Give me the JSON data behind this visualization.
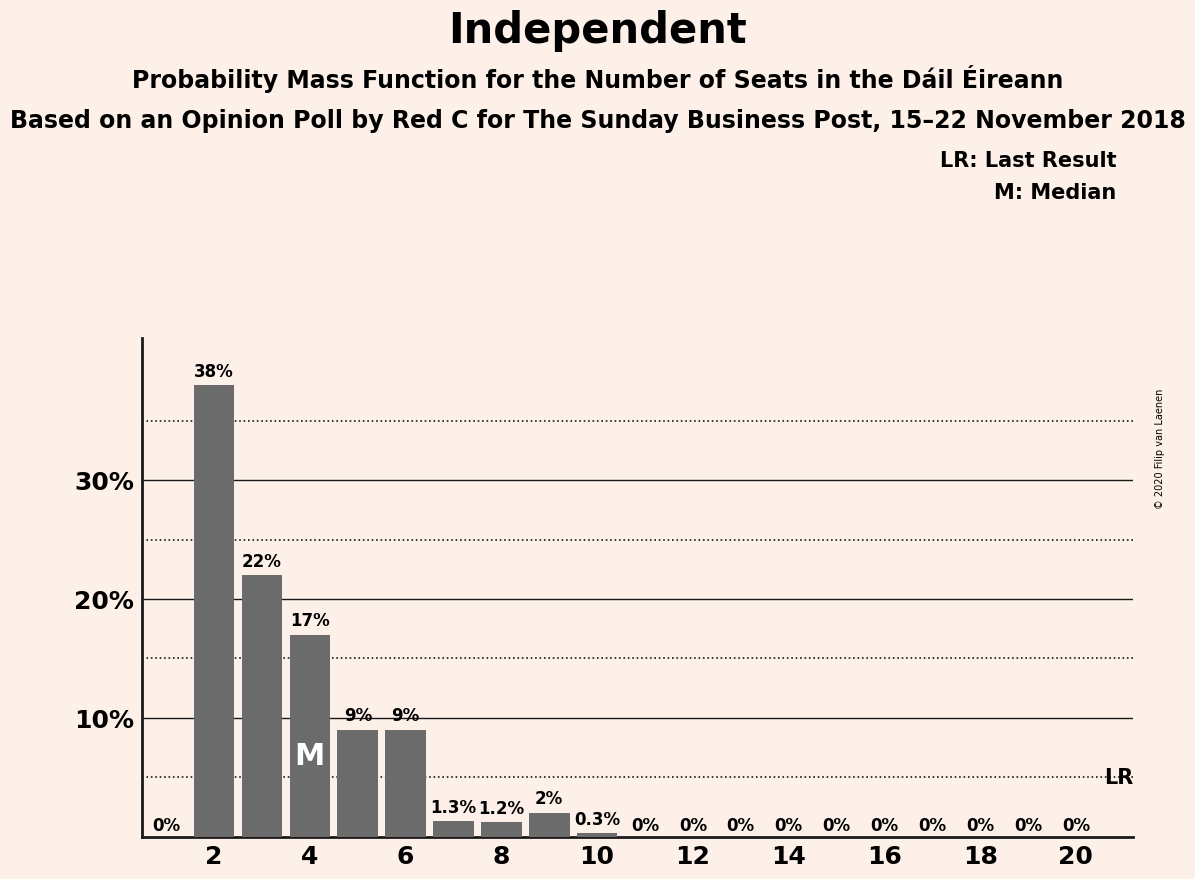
{
  "title": "Independent",
  "subtitle1": "Probability Mass Function for the Number of Seats in the Dáil Éireann",
  "subtitle2": "Based on an Opinion Poll by Red C for The Sunday Business Post, 15–22 November 2018",
  "copyright": "© 2020 Filip van Laenen",
  "seats": [
    1,
    2,
    3,
    4,
    5,
    6,
    7,
    8,
    9,
    10,
    11,
    12,
    13,
    14,
    15,
    16,
    17,
    18,
    19,
    20
  ],
  "probabilities": [
    0.0,
    0.38,
    0.22,
    0.17,
    0.09,
    0.09,
    0.013,
    0.012,
    0.02,
    0.003,
    0.0,
    0.0,
    0.0,
    0.0,
    0.0,
    0.0,
    0.0,
    0.0,
    0.0,
    0.0
  ],
  "labels": [
    "0%",
    "38%",
    "22%",
    "17%",
    "9%",
    "9%",
    "1.3%",
    "1.2%",
    "2%",
    "0.3%",
    "0%",
    "0%",
    "0%",
    "0%",
    "0%",
    "0%",
    "0%",
    "0%",
    "0%",
    "0%"
  ],
  "bar_color": "#6b6b6b",
  "background_color": "#fdf0e8",
  "median_seat_index": 3,
  "median_label": "M",
  "lr_value": 0.05,
  "lr_label": "LR",
  "yticks_solid": [
    0.1,
    0.2,
    0.3
  ],
  "yticks_dotted": [
    0.05,
    0.15,
    0.25,
    0.35
  ],
  "ylim": [
    0,
    0.42
  ],
  "xtick_positions": [
    2,
    4,
    6,
    8,
    10,
    12,
    14,
    16,
    18,
    20
  ],
  "title_fontsize": 30,
  "subtitle1_fontsize": 17,
  "subtitle2_fontsize": 17,
  "label_fontsize": 12,
  "axis_fontsize": 18,
  "legend_fontsize": 15,
  "bar_width": 0.85
}
